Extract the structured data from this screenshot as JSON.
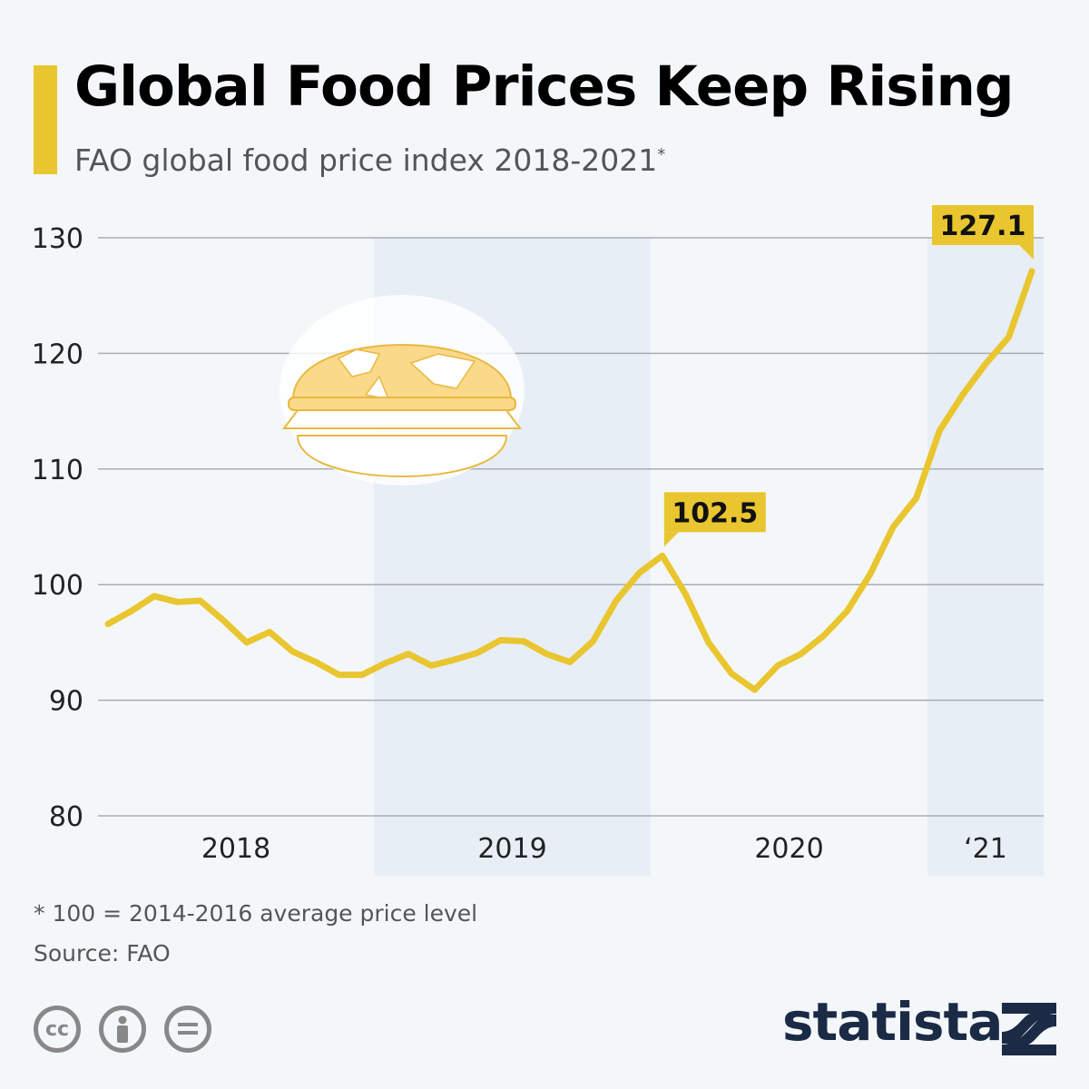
{
  "header": {
    "title": "Global Food Prices Keep Rising",
    "subtitle": "FAO global food price index 2018-2021",
    "subtitle_mark": "*"
  },
  "chart_data": {
    "type": "line",
    "title": "Global Food Prices Keep Rising",
    "subtitle": "FAO global food price index 2018-2021*",
    "ylim": [
      80,
      130
    ],
    "yticks": [
      "80",
      "90",
      "100",
      "110",
      "120",
      "130"
    ],
    "year_labels": [
      "2018",
      "2019",
      "2020",
      "‘21"
    ],
    "grid": true,
    "shaded_years": [
      "2019",
      "‘21"
    ],
    "x": [
      "2018-01",
      "2018-02",
      "2018-03",
      "2018-04",
      "2018-05",
      "2018-06",
      "2018-07",
      "2018-08",
      "2018-09",
      "2018-10",
      "2018-11",
      "2018-12",
      "2019-01",
      "2019-02",
      "2019-03",
      "2019-04",
      "2019-05",
      "2019-06",
      "2019-07",
      "2019-08",
      "2019-09",
      "2019-10",
      "2019-11",
      "2019-12",
      "2020-01",
      "2020-02",
      "2020-03",
      "2020-04",
      "2020-05",
      "2020-06",
      "2020-07",
      "2020-08",
      "2020-09",
      "2020-10",
      "2020-11",
      "2020-12",
      "2021-01",
      "2021-02",
      "2021-03",
      "2021-04",
      "2021-05"
    ],
    "values": [
      96.6,
      97.7,
      99.0,
      98.5,
      98.6,
      96.9,
      95.0,
      95.9,
      94.2,
      93.3,
      92.2,
      92.2,
      93.2,
      94.0,
      93.0,
      93.5,
      94.1,
      95.2,
      95.1,
      94.0,
      93.3,
      95.1,
      98.6,
      101.0,
      102.5,
      99.2,
      95.0,
      92.3,
      90.9,
      93.0,
      94.0,
      95.6,
      97.7,
      100.9,
      105.0,
      107.5,
      113.3,
      116.4,
      119.1,
      121.4,
      127.1
    ],
    "annotations": [
      {
        "x": "2020-01",
        "label": "102.5"
      },
      {
        "x": "2021-05",
        "label": "127.1"
      }
    ],
    "line_color": "#e9c630"
  },
  "footer": {
    "note": "* 100 = 2014-2016 average price level",
    "source": "Source: FAO",
    "cc_icons": [
      "cc-icon",
      "attribution-icon",
      "no-derivatives-icon"
    ],
    "cc_label": "cc",
    "brand": "statista"
  }
}
